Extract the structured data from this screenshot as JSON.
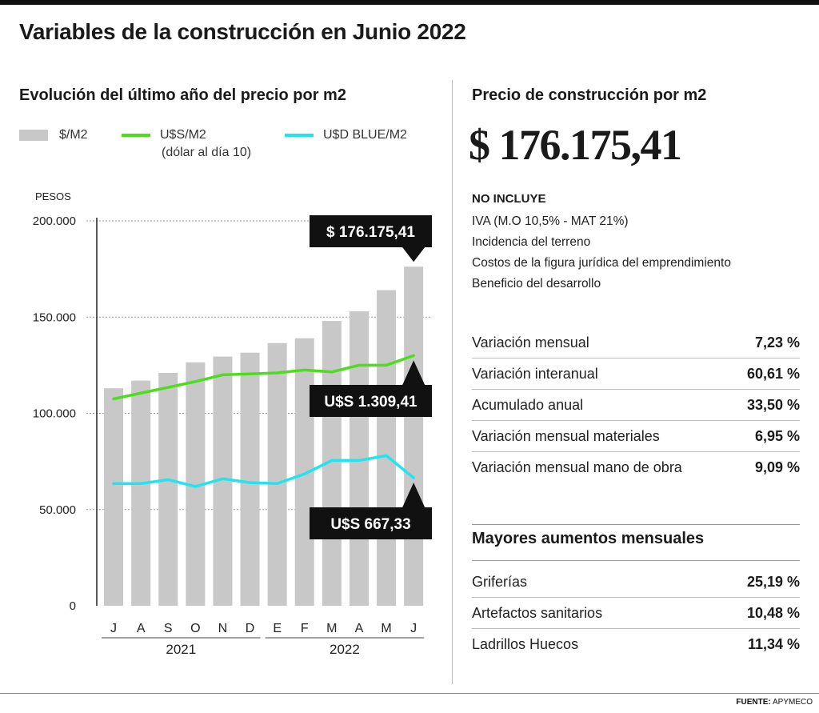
{
  "title": "Variables de la construcción en Junio 2022",
  "left_subtitle": "Evolución del último año del precio por m2",
  "right_subtitle": "Precio de construcción por m2",
  "legend": {
    "bars": "$/M2",
    "usd": "U$S/M2",
    "usd_note": "(dólar al día 10)",
    "blue": "U$D BLUE/M2"
  },
  "colors": {
    "bars": "#c8c8c8",
    "usd": "#4ddc1e",
    "blue": "#22e4ef",
    "callout_bg": "#111111",
    "callout_text": "#ffffff"
  },
  "chart_data": {
    "type": "bar",
    "ylabel": "PESOS",
    "ylim": [
      0,
      200000
    ],
    "yticks": [
      0,
      50000,
      100000,
      150000,
      200000
    ],
    "ytick_labels": [
      "0",
      "50.000",
      "100.000",
      "150.000",
      "200.000"
    ],
    "categories": [
      "J",
      "A",
      "S",
      "O",
      "N",
      "D",
      "E",
      "F",
      "M",
      "A",
      "M",
      "J"
    ],
    "year_groups": [
      {
        "label": "2021",
        "from": 0,
        "to": 5
      },
      {
        "label": "2022",
        "from": 6,
        "to": 11
      }
    ],
    "series": [
      {
        "name": "$/M2",
        "kind": "bar",
        "values": [
          113000,
          117000,
          121000,
          126500,
          129500,
          131500,
          136500,
          139000,
          148000,
          153000,
          164000,
          176175.41
        ]
      },
      {
        "name": "U$S/M2",
        "kind": "line",
        "values": [
          107500,
          110500,
          113500,
          116500,
          120000,
          120500,
          121000,
          122500,
          121500,
          125000,
          125000,
          130000
        ]
      },
      {
        "name": "U$D BLUE/M2",
        "kind": "line",
        "values": [
          63500,
          63500,
          65500,
          62000,
          66000,
          64000,
          63500,
          68500,
          75500,
          75500,
          78000,
          66500
        ]
      }
    ],
    "callouts": [
      {
        "text": "$ 176.175,41",
        "series": "$/M2"
      },
      {
        "text": "U$S 1.309,41",
        "series": "U$S/M2"
      },
      {
        "text": "U$S 667,33",
        "series": "U$D BLUE/M2"
      }
    ]
  },
  "price": "$ 176.175,41",
  "excludes": {
    "title": "NO INCLUYE",
    "items": [
      "IVA (M.O 10,5% - MAT 21%)",
      "Incidencia del terreno",
      "Costos de la figura jurídica del emprendimiento",
      "Beneficio del desarrollo"
    ]
  },
  "variations": [
    {
      "label": "Variación mensual",
      "value": "7,23 %"
    },
    {
      "label": "Variación interanual",
      "value": "60,61 %"
    },
    {
      "label": "Acumulado anual",
      "value": "33,50 %"
    },
    {
      "label": "Variación mensual materiales",
      "value": "6,95 %"
    },
    {
      "label": "Variación mensual mano de obra",
      "value": "9,09 %"
    }
  ],
  "increases": {
    "title": "Mayores aumentos mensuales",
    "items": [
      {
        "label": "Griferías",
        "value": "25,19 %"
      },
      {
        "label": "Artefactos sanitarios",
        "value": "10,48 %"
      },
      {
        "label": "Ladrillos Huecos",
        "value": "11,34 %"
      }
    ]
  },
  "source": {
    "label": "FUENTE:",
    "name": "APYMECO"
  }
}
